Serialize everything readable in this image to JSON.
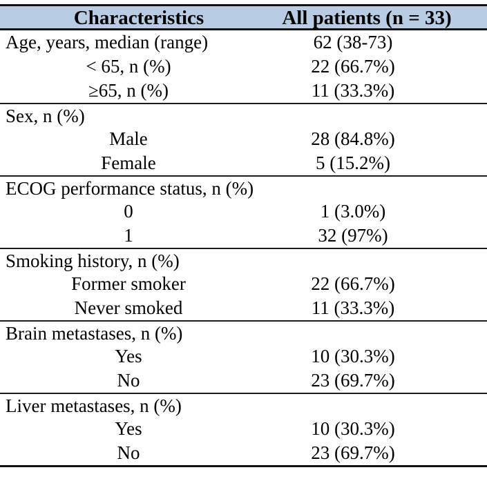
{
  "colors": {
    "header_bg": "#b8cce4",
    "rule_heavy": "#121212",
    "rule_light": "#1c1c1c",
    "text": "#000000"
  },
  "table": {
    "header": {
      "col1": "Characteristics",
      "col2": "All patients (n = 33)"
    },
    "sections": [
      {
        "rows": [
          {
            "label": "Age, years, median (range)",
            "value": "62 (38-73)"
          },
          {
            "label": "< 65, n (%)",
            "value": "22 (66.7%)"
          },
          {
            "label": "≥65, n (%)",
            "value": "11 (33.3%)"
          }
        ]
      },
      {
        "rows": [
          {
            "label": "Sex, n (%)",
            "value": ""
          },
          {
            "label": "Male",
            "value": "28 (84.8%)"
          },
          {
            "label": "Female",
            "value": "5 (15.2%)"
          }
        ]
      },
      {
        "rows": [
          {
            "label": "ECOG performance status, n (%)",
            "value": ""
          },
          {
            "label": "0",
            "value": "1 (3.0%)"
          },
          {
            "label": "1",
            "value": "32 (97%)"
          }
        ]
      },
      {
        "rows": [
          {
            "label": "Smoking history, n (%)",
            "value": ""
          },
          {
            "label": "Former smoker",
            "value": "22 (66.7%)"
          },
          {
            "label": "Never smoked",
            "value": "11 (33.3%)"
          }
        ]
      },
      {
        "rows": [
          {
            "label": "Brain metastases, n (%)",
            "value": ""
          },
          {
            "label": "Yes",
            "value": "10 (30.3%)"
          },
          {
            "label": "No",
            "value": "23 (69.7%)"
          }
        ]
      },
      {
        "rows": [
          {
            "label": "Liver metastases, n (%)",
            "value": ""
          },
          {
            "label": "Yes",
            "value": "10 (30.3%)"
          },
          {
            "label": "No",
            "value": "23 (69.7%)"
          }
        ]
      }
    ]
  }
}
